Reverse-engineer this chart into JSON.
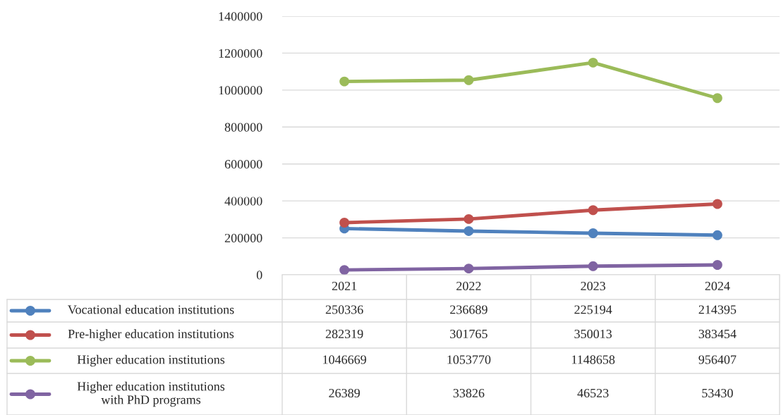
{
  "chart_data": {
    "type": "line",
    "categories": [
      "2021",
      "2022",
      "2023",
      "2024"
    ],
    "series": [
      {
        "name": "Vocational education institutions",
        "color": "#4f81bd",
        "values": [
          250336,
          236689,
          225194,
          214395
        ]
      },
      {
        "name": "Pre-higher education institutions",
        "color": "#c0504d",
        "values": [
          282319,
          301765,
          350013,
          383454
        ]
      },
      {
        "name": "Higher education institutions",
        "color": "#9bbb59",
        "values": [
          1046669,
          1053770,
          1148658,
          956407
        ]
      },
      {
        "name": "Higher education institutions\nwith PhD programs",
        "color": "#8064a2",
        "values": [
          26389,
          33826,
          46523,
          53430
        ]
      }
    ],
    "ylim": [
      0,
      1400000
    ],
    "yticks": [
      0,
      200000,
      400000,
      600000,
      800000,
      1000000,
      1200000,
      1400000
    ],
    "grid": "y",
    "legend": "bottom",
    "marker": "circle",
    "data_labels": true
  }
}
